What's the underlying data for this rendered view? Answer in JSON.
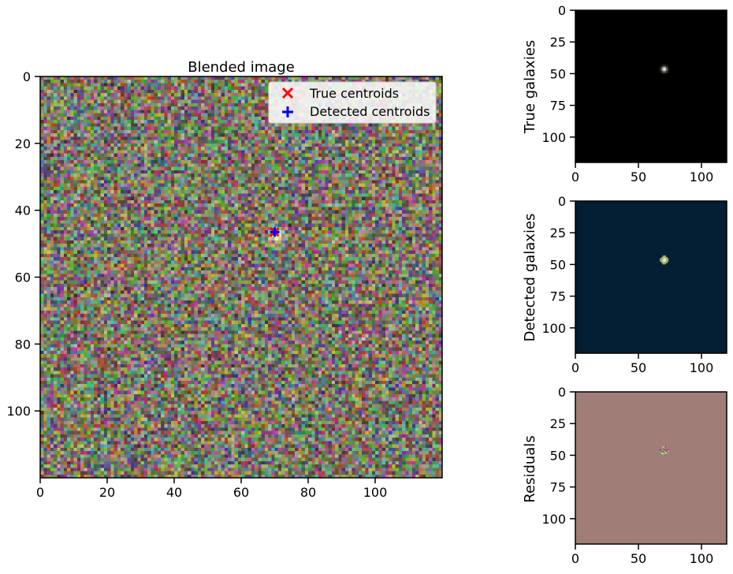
{
  "chart_data": [
    {
      "type": "heatmap",
      "title": "Blended image",
      "xlabel": "",
      "ylabel": "",
      "image_size": [
        120,
        120
      ],
      "xlim": [
        0,
        120
      ],
      "ylim": [
        120,
        0
      ],
      "xticks": [
        0,
        20,
        40,
        60,
        80,
        100
      ],
      "yticks": [
        0,
        20,
        40,
        60,
        80,
        100
      ],
      "background": "rgb noise",
      "galaxy_center": [
        70,
        47
      ],
      "legend_position": "upper right",
      "series": [
        {
          "name": "True centroids",
          "marker": "x",
          "color": "#ff0000",
          "x": [
            70
          ],
          "y": [
            46.5
          ]
        },
        {
          "name": "Detected centroids",
          "marker": "+",
          "color": "#0000ff",
          "x": [
            70
          ],
          "y": [
            46.5
          ]
        }
      ]
    },
    {
      "type": "heatmap",
      "ylabel": "True galaxies",
      "image_size": [
        120,
        120
      ],
      "xticks": [
        0,
        50,
        100
      ],
      "yticks": [
        0,
        25,
        50,
        75,
        100
      ],
      "background_color": "#000000",
      "galaxy_center": [
        70,
        46
      ]
    },
    {
      "type": "heatmap",
      "ylabel": "Detected galaxies",
      "image_size": [
        120,
        120
      ],
      "xticks": [
        0,
        50,
        100
      ],
      "yticks": [
        0,
        25,
        50,
        75,
        100
      ],
      "background_color": "#031e33",
      "galaxy_center": [
        70,
        46
      ]
    },
    {
      "type": "heatmap",
      "ylabel": "Residuals",
      "image_size": [
        120,
        120
      ],
      "xticks": [
        0,
        50,
        100
      ],
      "yticks": [
        0,
        25,
        50,
        75,
        100
      ],
      "background_color": "#a07d77",
      "galaxy_center": [
        70,
        46
      ]
    }
  ]
}
